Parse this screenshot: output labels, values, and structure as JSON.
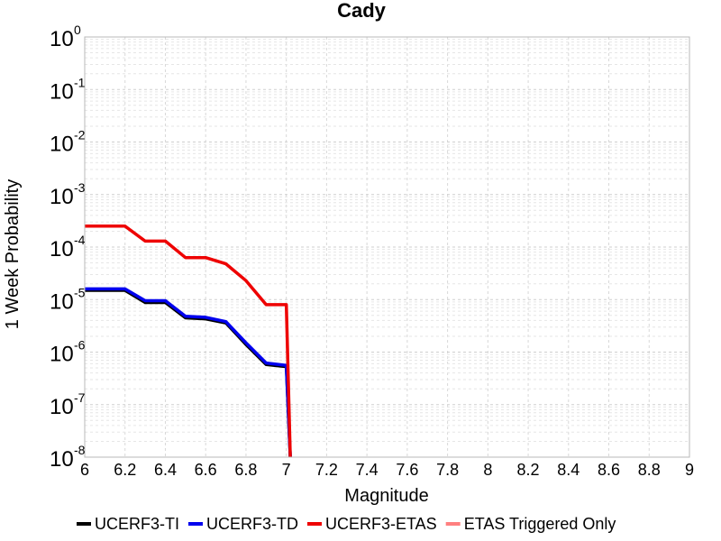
{
  "chart_data": {
    "type": "line",
    "title": "Cady",
    "xlabel": "Magnitude",
    "ylabel": "1 Week Probability",
    "xlim": [
      6,
      9
    ],
    "ylim": [
      1e-08,
      1
    ],
    "yscale": "log",
    "grid": true,
    "legend_position": "bottom",
    "x_ticks": [
      "6",
      "6.2",
      "6.4",
      "6.6",
      "6.8",
      "7",
      "7.2",
      "7.4",
      "7.6",
      "7.8",
      "8",
      "8.2",
      "8.4",
      "8.6",
      "8.8",
      "9"
    ],
    "y_ticks": [
      {
        "base": "10",
        "exp": "0",
        "value": 1
      },
      {
        "base": "10",
        "exp": "-1",
        "value": 0.1
      },
      {
        "base": "10",
        "exp": "-2",
        "value": 0.01
      },
      {
        "base": "10",
        "exp": "-3",
        "value": 0.001
      },
      {
        "base": "10",
        "exp": "-4",
        "value": 0.0001
      },
      {
        "base": "10",
        "exp": "-5",
        "value": 1e-05
      },
      {
        "base": "10",
        "exp": "-6",
        "value": 1e-06
      },
      {
        "base": "10",
        "exp": "-7",
        "value": 1e-07
      },
      {
        "base": "10",
        "exp": "-8",
        "value": 1e-08
      }
    ],
    "series": [
      {
        "name": "UCERF3-TI",
        "color": "#000000",
        "points": [
          [
            6.0,
            1.5e-05
          ],
          [
            6.2,
            1.5e-05
          ],
          [
            6.3,
            8.8e-06
          ],
          [
            6.4,
            8.8e-06
          ],
          [
            6.5,
            4.5e-06
          ],
          [
            6.6,
            4.3e-06
          ],
          [
            6.7,
            3.6e-06
          ],
          [
            6.8,
            1.4e-06
          ],
          [
            6.9,
            5.8e-07
          ],
          [
            7.0,
            5.3e-07
          ],
          [
            7.02,
            1e-08
          ]
        ]
      },
      {
        "name": "UCERF3-TD",
        "color": "#0000ee",
        "points": [
          [
            6.0,
            1.6e-05
          ],
          [
            6.2,
            1.6e-05
          ],
          [
            6.3,
            9.5e-06
          ],
          [
            6.4,
            9.5e-06
          ],
          [
            6.5,
            4.8e-06
          ],
          [
            6.6,
            4.6e-06
          ],
          [
            6.7,
            3.8e-06
          ],
          [
            6.8,
            1.5e-06
          ],
          [
            6.9,
            6.2e-07
          ],
          [
            7.0,
            5.6e-07
          ],
          [
            7.02,
            1e-08
          ]
        ]
      },
      {
        "name": "UCERF3-ETAS",
        "color": "#ee0000",
        "points": [
          [
            6.0,
            0.00025
          ],
          [
            6.2,
            0.00025
          ],
          [
            6.3,
            0.00013
          ],
          [
            6.4,
            0.00013
          ],
          [
            6.5,
            6.3e-05
          ],
          [
            6.6,
            6.3e-05
          ],
          [
            6.7,
            4.8e-05
          ],
          [
            6.8,
            2.3e-05
          ],
          [
            6.9,
            8e-06
          ],
          [
            7.0,
            8e-06
          ],
          [
            7.02,
            1e-08
          ]
        ]
      },
      {
        "name": "ETAS Triggered Only",
        "color": "#ff8080",
        "points": []
      }
    ]
  }
}
